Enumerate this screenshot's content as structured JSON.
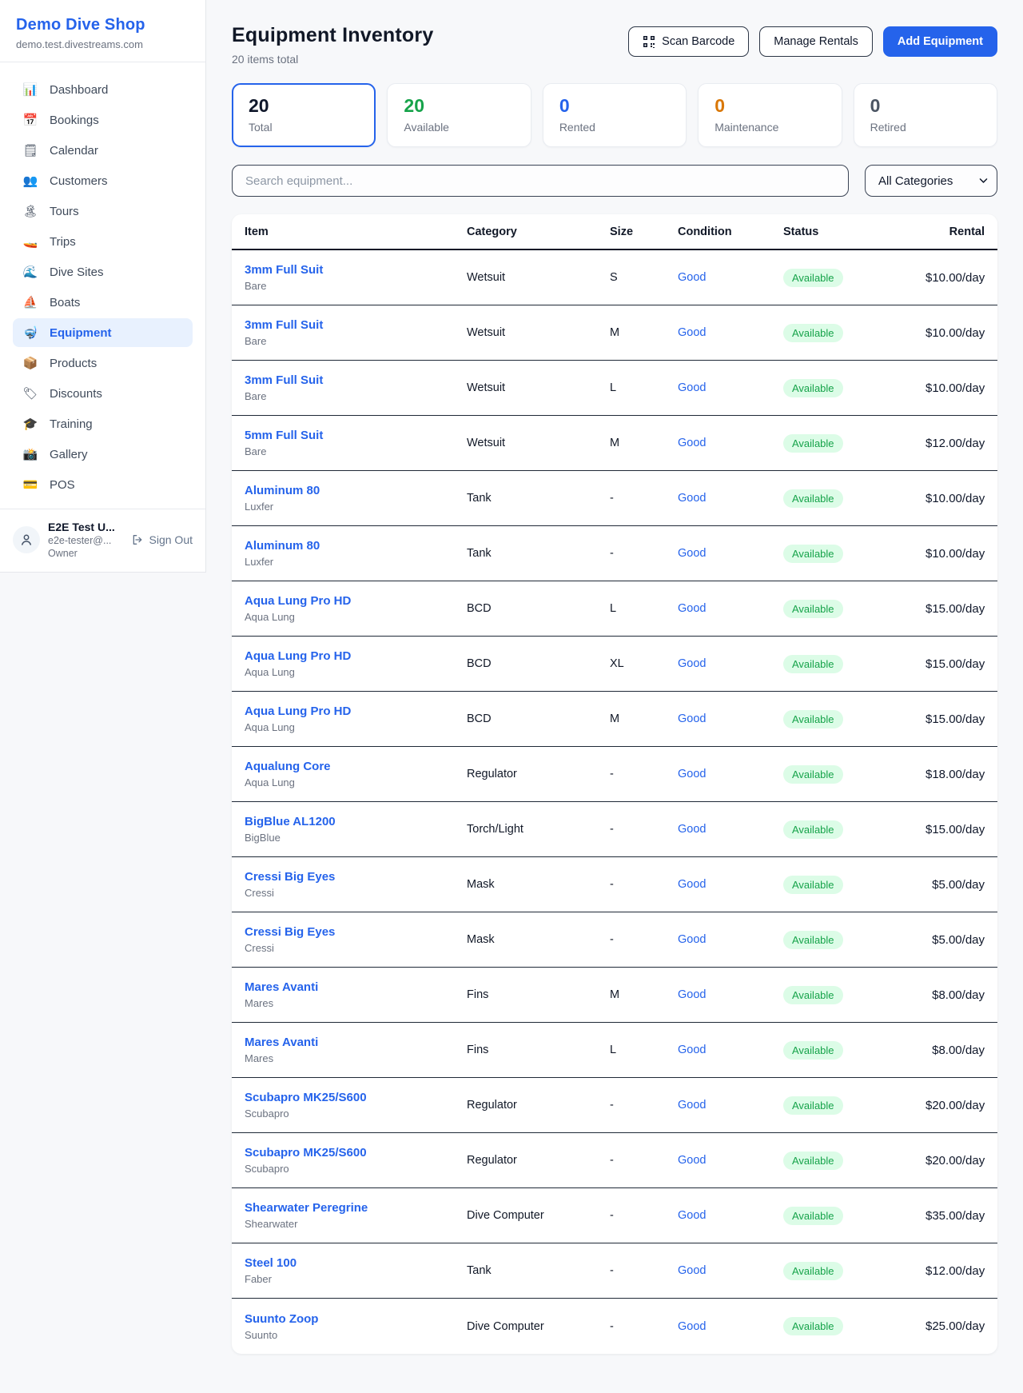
{
  "sidebar": {
    "brand": {
      "name": "Demo Dive Shop",
      "domain": "demo.test.divestreams.com"
    },
    "nav": [
      {
        "id": "dashboard",
        "icon_name": "dashboard-icon",
        "glyph": "📊",
        "label": "Dashboard",
        "active": false
      },
      {
        "id": "bookings",
        "icon_name": "bookings-icon",
        "glyph": "📅",
        "label": "Bookings",
        "active": false
      },
      {
        "id": "calendar",
        "icon_name": "calendar-icon",
        "glyph": "🗒",
        "label": "Calendar",
        "active": false
      },
      {
        "id": "customers",
        "icon_name": "customers-icon",
        "glyph": "👥",
        "label": "Customers",
        "active": false
      },
      {
        "id": "tours",
        "icon_name": "tours-icon",
        "glyph": "🏝",
        "label": "Tours",
        "active": false
      },
      {
        "id": "trips",
        "icon_name": "trips-icon",
        "glyph": "🚤",
        "label": "Trips",
        "active": false
      },
      {
        "id": "dive-sites",
        "icon_name": "dive-sites-icon",
        "glyph": "🌊",
        "label": "Dive Sites",
        "active": false
      },
      {
        "id": "boats",
        "icon_name": "boats-icon",
        "glyph": "⛵",
        "label": "Boats",
        "active": false
      },
      {
        "id": "equipment",
        "icon_name": "equipment-icon",
        "glyph": "🤿",
        "label": "Equipment",
        "active": true
      },
      {
        "id": "products",
        "icon_name": "products-icon",
        "glyph": "📦",
        "label": "Products",
        "active": false
      },
      {
        "id": "discounts",
        "icon_name": "discounts-icon",
        "glyph": "🏷",
        "label": "Discounts",
        "active": false
      },
      {
        "id": "training",
        "icon_name": "training-icon",
        "glyph": "🎓",
        "label": "Training",
        "active": false
      },
      {
        "id": "gallery",
        "icon_name": "gallery-icon",
        "glyph": "📸",
        "label": "Gallery",
        "active": false
      },
      {
        "id": "pos",
        "icon_name": "pos-icon",
        "glyph": "💳",
        "label": "POS",
        "active": false
      }
    ],
    "user": {
      "name": "E2E Test U...",
      "email": "e2e-tester@...",
      "role": "Owner",
      "signout_label": "Sign Out"
    }
  },
  "header": {
    "title": "Equipment Inventory",
    "subtitle": "20 items total",
    "scan_barcode_label": "Scan Barcode",
    "manage_rentals_label": "Manage Rentals",
    "add_equipment_label": "Add Equipment"
  },
  "stats": [
    {
      "value": "20",
      "label": "Total",
      "color": "#0f172a",
      "selected": true
    },
    {
      "value": "20",
      "label": "Available",
      "color": "#16a34a",
      "selected": false
    },
    {
      "value": "0",
      "label": "Rented",
      "color": "#2563eb",
      "selected": false
    },
    {
      "value": "0",
      "label": "Maintenance",
      "color": "#d97706",
      "selected": false
    },
    {
      "value": "0",
      "label": "Retired",
      "color": "#4b5563",
      "selected": false
    }
  ],
  "filters": {
    "search_placeholder": "Search equipment...",
    "category_selected": "All Categories"
  },
  "table": {
    "headers": [
      "Item",
      "Category",
      "Size",
      "Condition",
      "Status",
      "Rental"
    ],
    "rows": [
      {
        "name": "3mm Full Suit",
        "brand": "Bare",
        "category": "Wetsuit",
        "size": "S",
        "condition": "Good",
        "status": "Available",
        "rental": "$10.00/day"
      },
      {
        "name": "3mm Full Suit",
        "brand": "Bare",
        "category": "Wetsuit",
        "size": "M",
        "condition": "Good",
        "status": "Available",
        "rental": "$10.00/day"
      },
      {
        "name": "3mm Full Suit",
        "brand": "Bare",
        "category": "Wetsuit",
        "size": "L",
        "condition": "Good",
        "status": "Available",
        "rental": "$10.00/day"
      },
      {
        "name": "5mm Full Suit",
        "brand": "Bare",
        "category": "Wetsuit",
        "size": "M",
        "condition": "Good",
        "status": "Available",
        "rental": "$12.00/day"
      },
      {
        "name": "Aluminum 80",
        "brand": "Luxfer",
        "category": "Tank",
        "size": "-",
        "condition": "Good",
        "status": "Available",
        "rental": "$10.00/day"
      },
      {
        "name": "Aluminum 80",
        "brand": "Luxfer",
        "category": "Tank",
        "size": "-",
        "condition": "Good",
        "status": "Available",
        "rental": "$10.00/day"
      },
      {
        "name": "Aqua Lung Pro HD",
        "brand": "Aqua Lung",
        "category": "BCD",
        "size": "L",
        "condition": "Good",
        "status": "Available",
        "rental": "$15.00/day"
      },
      {
        "name": "Aqua Lung Pro HD",
        "brand": "Aqua Lung",
        "category": "BCD",
        "size": "XL",
        "condition": "Good",
        "status": "Available",
        "rental": "$15.00/day"
      },
      {
        "name": "Aqua Lung Pro HD",
        "brand": "Aqua Lung",
        "category": "BCD",
        "size": "M",
        "condition": "Good",
        "status": "Available",
        "rental": "$15.00/day"
      },
      {
        "name": "Aqualung Core",
        "brand": "Aqua Lung",
        "category": "Regulator",
        "size": "-",
        "condition": "Good",
        "status": "Available",
        "rental": "$18.00/day"
      },
      {
        "name": "BigBlue AL1200",
        "brand": "BigBlue",
        "category": "Torch/Light",
        "size": "-",
        "condition": "Good",
        "status": "Available",
        "rental": "$15.00/day"
      },
      {
        "name": "Cressi Big Eyes",
        "brand": "Cressi",
        "category": "Mask",
        "size": "-",
        "condition": "Good",
        "status": "Available",
        "rental": "$5.00/day"
      },
      {
        "name": "Cressi Big Eyes",
        "brand": "Cressi",
        "category": "Mask",
        "size": "-",
        "condition": "Good",
        "status": "Available",
        "rental": "$5.00/day"
      },
      {
        "name": "Mares Avanti",
        "brand": "Mares",
        "category": "Fins",
        "size": "M",
        "condition": "Good",
        "status": "Available",
        "rental": "$8.00/day"
      },
      {
        "name": "Mares Avanti",
        "brand": "Mares",
        "category": "Fins",
        "size": "L",
        "condition": "Good",
        "status": "Available",
        "rental": "$8.00/day"
      },
      {
        "name": "Scubapro MK25/S600",
        "brand": "Scubapro",
        "category": "Regulator",
        "size": "-",
        "condition": "Good",
        "status": "Available",
        "rental": "$20.00/day"
      },
      {
        "name": "Scubapro MK25/S600",
        "brand": "Scubapro",
        "category": "Regulator",
        "size": "-",
        "condition": "Good",
        "status": "Available",
        "rental": "$20.00/day"
      },
      {
        "name": "Shearwater Peregrine",
        "brand": "Shearwater",
        "category": "Dive Computer",
        "size": "-",
        "condition": "Good",
        "status": "Available",
        "rental": "$35.00/day"
      },
      {
        "name": "Steel 100",
        "brand": "Faber",
        "category": "Tank",
        "size": "-",
        "condition": "Good",
        "status": "Available",
        "rental": "$12.00/day"
      },
      {
        "name": "Suunto Zoop",
        "brand": "Suunto",
        "category": "Dive Computer",
        "size": "-",
        "condition": "Good",
        "status": "Available",
        "rental": "$25.00/day"
      }
    ]
  }
}
